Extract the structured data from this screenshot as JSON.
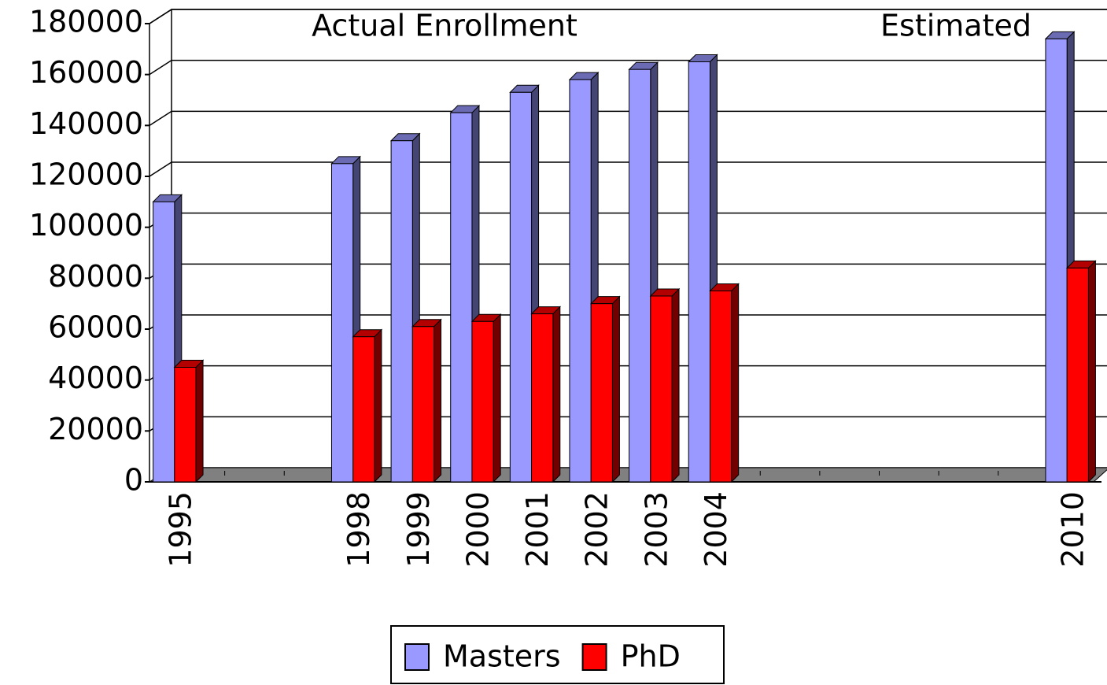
{
  "chart_data": {
    "type": "bar3d",
    "annotations": [
      "Actual Enrollment",
      "Estimated"
    ],
    "categories": [
      "1995",
      null,
      null,
      "1998",
      "1999",
      "2000",
      "2001",
      "2002",
      "2003",
      "2004",
      null,
      null,
      null,
      null,
      null,
      "2010"
    ],
    "series": [
      {
        "name": "Masters",
        "color": "#9999ff",
        "values": [
          110000,
          null,
          null,
          125000,
          134000,
          145000,
          153000,
          158000,
          162000,
          165000,
          null,
          null,
          null,
          null,
          null,
          174000
        ]
      },
      {
        "name": "PhD",
        "color": "#ff0000",
        "values": [
          45000,
          null,
          null,
          57000,
          61000,
          63000,
          66000,
          70000,
          73000,
          75000,
          null,
          null,
          null,
          null,
          null,
          84000
        ]
      }
    ],
    "ylim": [
      0,
      180000
    ],
    "yticks": [
      0,
      20000,
      40000,
      60000,
      80000,
      100000,
      120000,
      140000,
      160000,
      180000
    ],
    "grid": true,
    "legend": "bottom"
  }
}
